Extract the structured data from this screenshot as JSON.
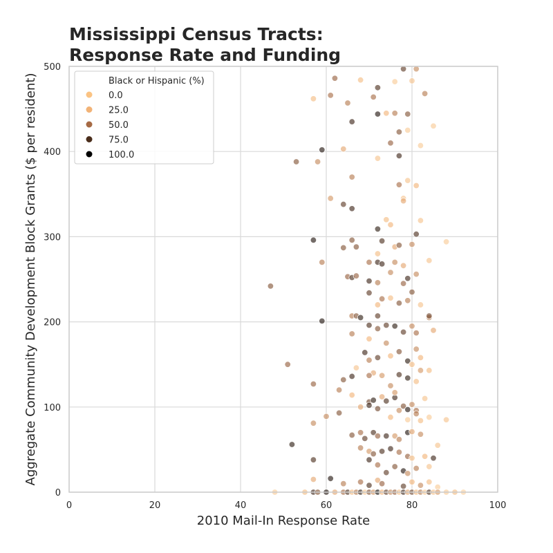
{
  "chart_data": {
    "type": "scatter",
    "title_line1": "Mississippi Census Tracts:",
    "title_line2": "Response Rate and Funding",
    "xlabel": "2010 Mail-In Response Rate",
    "ylabel": "Aggregate Community Development Block Grants ($ per resident)",
    "xlim": [
      0,
      100
    ],
    "ylim": [
      0,
      500
    ],
    "xticks": [
      "0",
      "20",
      "40",
      "60",
      "80",
      "100"
    ],
    "yticks": [
      "0",
      "100",
      "200",
      "300",
      "400",
      "500"
    ],
    "grid": true,
    "legend": {
      "title": "Black or Hispanic (%)",
      "placement": "top-left",
      "entries": [
        {
          "label": "0.0",
          "color": "#fbc383"
        },
        {
          "label": "25.0",
          "color": "#f2b377"
        },
        {
          "label": "50.0",
          "color": "#a66a44"
        },
        {
          "label": "75.0",
          "color": "#4a2d1b"
        },
        {
          "label": "100.0",
          "color": "#000000"
        }
      ]
    },
    "color_scale": {
      "hue_var": "Black or Hispanic (%)",
      "min": 0,
      "max": 100,
      "stops": [
        "#fcd9a8",
        "#f2b377",
        "#a66a44",
        "#4a2d1b",
        "#000000"
      ]
    },
    "points": [
      [
        78,
        497,
        70
      ],
      [
        81,
        497,
        40
      ],
      [
        62,
        486,
        55
      ],
      [
        68,
        484,
        20
      ],
      [
        76,
        482,
        10
      ],
      [
        80,
        483,
        15
      ],
      [
        83,
        468,
        45
      ],
      [
        57,
        462,
        20
      ],
      [
        61,
        466,
        50
      ],
      [
        65,
        457,
        45
      ],
      [
        71,
        464,
        50
      ],
      [
        72,
        444,
        90
      ],
      [
        74,
        445,
        25
      ],
      [
        76,
        445,
        45
      ],
      [
        79,
        444,
        60
      ],
      [
        85,
        430,
        10
      ],
      [
        66,
        435,
        80
      ],
      [
        77,
        423,
        60
      ],
      [
        79,
        425,
        10
      ],
      [
        72,
        475,
        75
      ],
      [
        59,
        402,
        90
      ],
      [
        64,
        403,
        30
      ],
      [
        53,
        388,
        60
      ],
      [
        58,
        388,
        40
      ],
      [
        72,
        392,
        15
      ],
      [
        77,
        395,
        80
      ],
      [
        82,
        407,
        10
      ],
      [
        75,
        410,
        55
      ],
      [
        66,
        370,
        45
      ],
      [
        77,
        361,
        50
      ],
      [
        79,
        366,
        15
      ],
      [
        81,
        360,
        25
      ],
      [
        61,
        345,
        35
      ],
      [
        64,
        338,
        70
      ],
      [
        66,
        333,
        80
      ],
      [
        78,
        345,
        15
      ],
      [
        78,
        342,
        30
      ],
      [
        82,
        319,
        15
      ],
      [
        74,
        320,
        20
      ],
      [
        72,
        309,
        85
      ],
      [
        81,
        303,
        75
      ],
      [
        75,
        314,
        25
      ],
      [
        57,
        296,
        90
      ],
      [
        66,
        296,
        60
      ],
      [
        67,
        288,
        60
      ],
      [
        73,
        295,
        75
      ],
      [
        76,
        288,
        30
      ],
      [
        77,
        290,
        60
      ],
      [
        80,
        291,
        40
      ],
      [
        88,
        294,
        10
      ],
      [
        64,
        287,
        60
      ],
      [
        70,
        270,
        50
      ],
      [
        72,
        280,
        20
      ],
      [
        59,
        270,
        45
      ],
      [
        72,
        270,
        80
      ],
      [
        73,
        268,
        80
      ],
      [
        76,
        270,
        40
      ],
      [
        78,
        266,
        30
      ],
      [
        84,
        272,
        15
      ],
      [
        65,
        253,
        55
      ],
      [
        66,
        252,
        75
      ],
      [
        67,
        254,
        55
      ],
      [
        70,
        248,
        80
      ],
      [
        72,
        246,
        45
      ],
      [
        75,
        258,
        40
      ],
      [
        78,
        245,
        55
      ],
      [
        79,
        251,
        80
      ],
      [
        81,
        256,
        40
      ],
      [
        47,
        242,
        60
      ],
      [
        70,
        234,
        70
      ],
      [
        73,
        227,
        50
      ],
      [
        75,
        228,
        20
      ],
      [
        77,
        222,
        60
      ],
      [
        79,
        225,
        45
      ],
      [
        80,
        235,
        60
      ],
      [
        82,
        220,
        15
      ],
      [
        72,
        220,
        25
      ],
      [
        59,
        201,
        90
      ],
      [
        66,
        207,
        45
      ],
      [
        67,
        207,
        60
      ],
      [
        68,
        205,
        85
      ],
      [
        70,
        196,
        75
      ],
      [
        72,
        207,
        70
      ],
      [
        74,
        196,
        70
      ],
      [
        76,
        195,
        85
      ],
      [
        80,
        195,
        40
      ],
      [
        81,
        187,
        50
      ],
      [
        84,
        205,
        45
      ],
      [
        84,
        207,
        65
      ],
      [
        85,
        190,
        30
      ],
      [
        72,
        192,
        60
      ],
      [
        78,
        188,
        70
      ],
      [
        66,
        186,
        45
      ],
      [
        70,
        180,
        25
      ],
      [
        74,
        175,
        40
      ],
      [
        51,
        150,
        55
      ],
      [
        69,
        164,
        80
      ],
      [
        70,
        155,
        45
      ],
      [
        72,
        158,
        70
      ],
      [
        75,
        160,
        25
      ],
      [
        77,
        165,
        60
      ],
      [
        79,
        154,
        85
      ],
      [
        80,
        150,
        20
      ],
      [
        81,
        168,
        40
      ],
      [
        82,
        158,
        25
      ],
      [
        67,
        146,
        15
      ],
      [
        71,
        140,
        30
      ],
      [
        57,
        127,
        55
      ],
      [
        63,
        120,
        45
      ],
      [
        64,
        132,
        60
      ],
      [
        66,
        136,
        80
      ],
      [
        70,
        137,
        50
      ],
      [
        73,
        137,
        35
      ],
      [
        75,
        125,
        40
      ],
      [
        77,
        138,
        75
      ],
      [
        79,
        134,
        85
      ],
      [
        81,
        130,
        20
      ],
      [
        82,
        143,
        35
      ],
      [
        84,
        143,
        20
      ],
      [
        66,
        114,
        25
      ],
      [
        70,
        106,
        65
      ],
      [
        71,
        108,
        85
      ],
      [
        73,
        112,
        30
      ],
      [
        74,
        107,
        75
      ],
      [
        76,
        111,
        80
      ],
      [
        78,
        101,
        60
      ],
      [
        79,
        97,
        90
      ],
      [
        80,
        103,
        40
      ],
      [
        81,
        96,
        50
      ],
      [
        83,
        110,
        15
      ],
      [
        76,
        117,
        35
      ],
      [
        60,
        89,
        40
      ],
      [
        63,
        93,
        60
      ],
      [
        68,
        100,
        30
      ],
      [
        70,
        102,
        80
      ],
      [
        72,
        98,
        65
      ],
      [
        75,
        88,
        25
      ],
      [
        77,
        96,
        40
      ],
      [
        79,
        85,
        10
      ],
      [
        81,
        92,
        45
      ],
      [
        82,
        84,
        20
      ],
      [
        84,
        88,
        10
      ],
      [
        88,
        85,
        15
      ],
      [
        57,
        81,
        40
      ],
      [
        66,
        67,
        60
      ],
      [
        68,
        70,
        50
      ],
      [
        69,
        63,
        70
      ],
      [
        71,
        70,
        75
      ],
      [
        72,
        66,
        55
      ],
      [
        74,
        66,
        80
      ],
      [
        76,
        66,
        35
      ],
      [
        77,
        62,
        45
      ],
      [
        79,
        70,
        90
      ],
      [
        80,
        71,
        30
      ],
      [
        82,
        68,
        40
      ],
      [
        52,
        56,
        85
      ],
      [
        68,
        52,
        45
      ],
      [
        70,
        48,
        35
      ],
      [
        71,
        45,
        60
      ],
      [
        73,
        48,
        75
      ],
      [
        75,
        51,
        80
      ],
      [
        77,
        47,
        50
      ],
      [
        79,
        42,
        55
      ],
      [
        80,
        40,
        20
      ],
      [
        83,
        42,
        25
      ],
      [
        85,
        40,
        80
      ],
      [
        86,
        55,
        15
      ],
      [
        57,
        38,
        75
      ],
      [
        70,
        38,
        80
      ],
      [
        72,
        32,
        50
      ],
      [
        74,
        23,
        70
      ],
      [
        76,
        30,
        60
      ],
      [
        78,
        25,
        90
      ],
      [
        79,
        22,
        40
      ],
      [
        81,
        28,
        45
      ],
      [
        84,
        30,
        15
      ],
      [
        61,
        16,
        90
      ],
      [
        68,
        12,
        50
      ],
      [
        72,
        14,
        30
      ],
      [
        57,
        15,
        30
      ],
      [
        64,
        10,
        45
      ],
      [
        70,
        8,
        75
      ],
      [
        73,
        10,
        55
      ],
      [
        78,
        7,
        70
      ],
      [
        80,
        12,
        25
      ],
      [
        82,
        8,
        40
      ],
      [
        84,
        12,
        20
      ],
      [
        86,
        6,
        10
      ],
      [
        48,
        0,
        10
      ],
      [
        55,
        0,
        20
      ],
      [
        57,
        0,
        80
      ],
      [
        58,
        0,
        60
      ],
      [
        60,
        0,
        90
      ],
      [
        62,
        0,
        30
      ],
      [
        64,
        0,
        50
      ],
      [
        65,
        0,
        75
      ],
      [
        66,
        0,
        20
      ],
      [
        67,
        0,
        45
      ],
      [
        68,
        0,
        85
      ],
      [
        69,
        0,
        10
      ],
      [
        70,
        0,
        60
      ],
      [
        71,
        0,
        35
      ],
      [
        72,
        0,
        95
      ],
      [
        73,
        0,
        25
      ],
      [
        74,
        0,
        70
      ],
      [
        75,
        0,
        40
      ],
      [
        76,
        0,
        55
      ],
      [
        77,
        0,
        15
      ],
      [
        78,
        0,
        80
      ],
      [
        79,
        0,
        30
      ],
      [
        80,
        0,
        65
      ],
      [
        81,
        0,
        20
      ],
      [
        82,
        0,
        45
      ],
      [
        83,
        0,
        10
      ],
      [
        84,
        0,
        75
      ],
      [
        85,
        0,
        15
      ],
      [
        86,
        0,
        35
      ],
      [
        88,
        0,
        10
      ],
      [
        90,
        0,
        20
      ],
      [
        92,
        0,
        5
      ]
    ]
  }
}
